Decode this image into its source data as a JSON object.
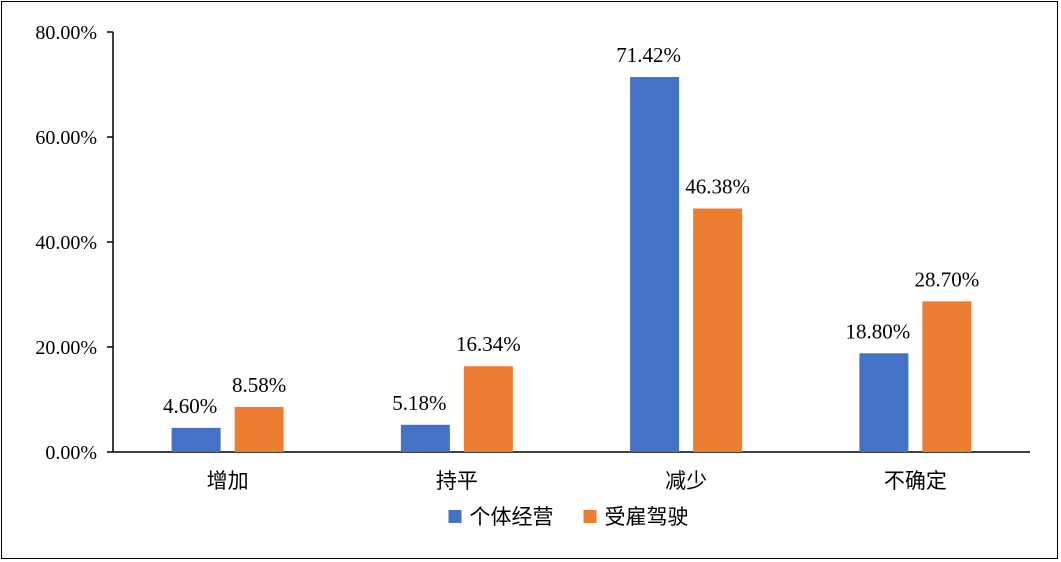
{
  "chart_data": {
    "type": "bar",
    "categories": [
      "增加",
      "持平",
      "减少",
      "不确定"
    ],
    "series": [
      {
        "name": "个体经营",
        "color": "#4472C4",
        "values": [
          4.6,
          5.18,
          71.42,
          18.8
        ],
        "labels": [
          "4.60%",
          "5.18%",
          "71.42%",
          "18.80%"
        ]
      },
      {
        "name": "受雇驾驶",
        "color": "#ED7D31",
        "values": [
          8.58,
          16.34,
          46.38,
          28.7
        ],
        "labels": [
          "8.58%",
          "16.34%",
          "46.38%",
          "28.70%"
        ]
      }
    ],
    "ylim": [
      0,
      80
    ],
    "yticks": [
      0,
      20,
      40,
      60,
      80
    ],
    "ytick_labels": [
      "0.00%",
      "20.00%",
      "40.00%",
      "60.00%",
      "80.00%"
    ],
    "title": "",
    "xlabel": "",
    "ylabel": "",
    "legend_position": "bottom",
    "grid": false
  }
}
